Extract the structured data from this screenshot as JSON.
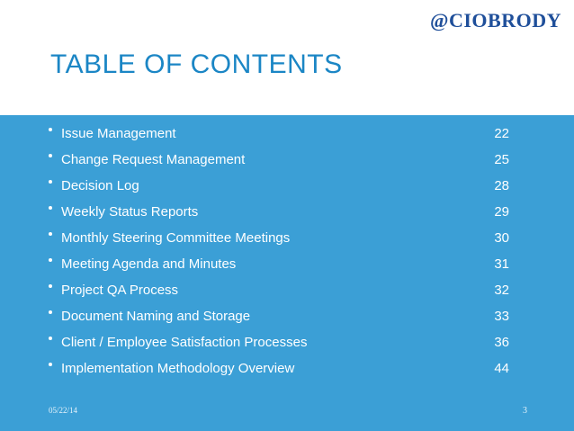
{
  "slide": {
    "handle": "@CIOBRODY",
    "title": "TABLE OF CONTENTS",
    "footer_date": "05/22/14",
    "page_number": "3",
    "accent_color": "#3b9fd6",
    "title_color": "#1b86c5"
  },
  "toc": [
    {
      "label": "Issue Management",
      "page": "22"
    },
    {
      "label": "Change Request Management",
      "page": "25"
    },
    {
      "label": "Decision Log",
      "page": "28"
    },
    {
      "label": "Weekly Status Reports",
      "page": "29"
    },
    {
      "label": "Monthly Steering Committee Meetings",
      "page": "30"
    },
    {
      "label": "Meeting Agenda and Minutes",
      "page": "31"
    },
    {
      "label": "Project QA Process",
      "page": "32"
    },
    {
      "label": "Document Naming and Storage",
      "page": "33"
    },
    {
      "label": "Client / Employee Satisfaction Processes",
      "page": "36"
    },
    {
      "label": "Implementation Methodology Overview",
      "page": "44"
    }
  ]
}
